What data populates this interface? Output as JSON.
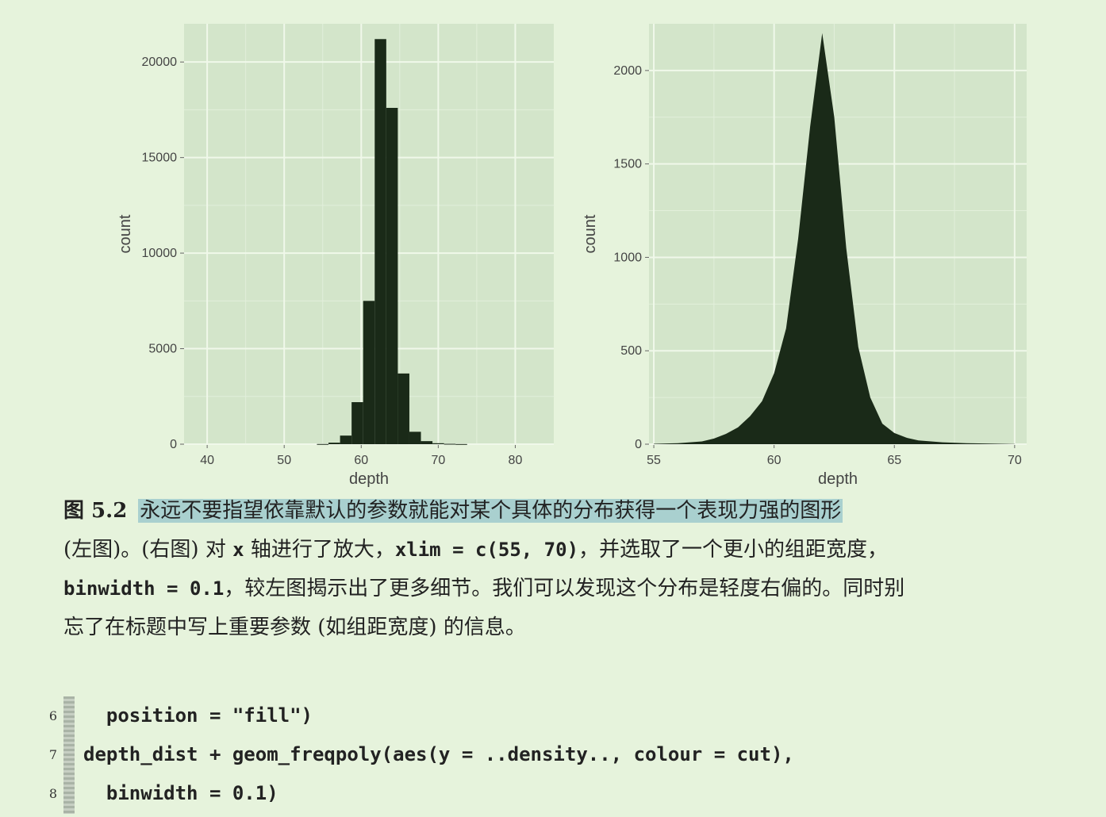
{
  "chart_data": [
    {
      "type": "bar",
      "xlabel": "depth",
      "ylabel": "count",
      "xlim": [
        37,
        85
      ],
      "ylim": [
        0,
        22000
      ],
      "x_ticks": [
        "40",
        "50",
        "60",
        "70",
        "80"
      ],
      "y_ticks": [
        "0",
        "5000",
        "10000",
        "15000",
        "20000"
      ],
      "grid": true,
      "binwidth": 1.5,
      "bins": [
        {
          "x": 55,
          "value": 10
        },
        {
          "x": 56.5,
          "value": 80
        },
        {
          "x": 58,
          "value": 450
        },
        {
          "x": 59.5,
          "value": 2200
        },
        {
          "x": 61,
          "value": 7500
        },
        {
          "x": 62.5,
          "value": 21200
        },
        {
          "x": 64,
          "value": 17600
        },
        {
          "x": 65.5,
          "value": 3700
        },
        {
          "x": 67,
          "value": 650
        },
        {
          "x": 68.5,
          "value": 160
        },
        {
          "x": 70,
          "value": 50
        },
        {
          "x": 71.5,
          "value": 20
        },
        {
          "x": 73,
          "value": 8
        }
      ]
    },
    {
      "type": "area",
      "xlabel": "depth",
      "ylabel": "count",
      "xlim": [
        54.8,
        70.5
      ],
      "ylim": [
        0,
        2250
      ],
      "x_ticks": [
        "55",
        "60",
        "65",
        "70"
      ],
      "y_ticks": [
        "0",
        "500",
        "1000",
        "1500",
        "2000"
      ],
      "grid": true,
      "binwidth": 0.1,
      "x": [
        55,
        56,
        57,
        57.5,
        58,
        58.5,
        59,
        59.5,
        60,
        60.5,
        61,
        61.5,
        62,
        62.5,
        63,
        63.5,
        64,
        64.5,
        65,
        65.5,
        66,
        67,
        68,
        69,
        70
      ],
      "values": [
        2,
        5,
        15,
        30,
        55,
        90,
        150,
        230,
        380,
        620,
        1100,
        1700,
        2200,
        1750,
        1050,
        520,
        250,
        110,
        60,
        35,
        20,
        10,
        5,
        3,
        1
      ]
    }
  ],
  "caption": {
    "label": "图 5.2",
    "line1_highlight": "永远不要指望依靠默认的参数就能对某个具体的分布获得一个表现力强的图形",
    "line2_a": "(左图)。(右图) 对 ",
    "line2_code1": "x",
    "line2_b": " 轴进行了放大，",
    "line2_code2": "xlim = c(55, 70)",
    "line2_c": "，并选取了一个更小的组距宽度，",
    "line3_code": "binwidth = 0.1",
    "line3_a": "，较左图揭示出了更多细节。我们可以发现这个分布是轻度右偏的。同时别",
    "line4": "忘了在标题中写上重要参数 (如组距宽度) 的信息。"
  },
  "code": [
    {
      "ln": "6",
      "text": "  position = \"fill\")"
    },
    {
      "ln": "7",
      "text": "depth_dist + geom_freqpoly(aes(y = ..density.., colour = cut),"
    },
    {
      "ln": "8",
      "text": "  binwidth = 0.1)"
    }
  ]
}
